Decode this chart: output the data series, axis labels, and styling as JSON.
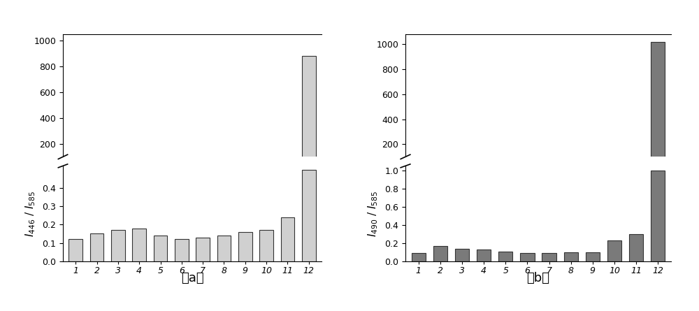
{
  "chart_a": {
    "categories": [
      "1",
      "2",
      "3",
      "4",
      "5",
      "6",
      "7",
      "8",
      "9",
      "10",
      "11",
      "12"
    ],
    "values_lower": [
      0.12,
      0.15,
      0.17,
      0.18,
      0.14,
      0.12,
      0.13,
      0.14,
      0.16,
      0.17,
      0.24,
      0.5
    ],
    "bar12_total": 880,
    "ylabel": "$I_{446}$ / $I_{585}$",
    "lower_ylim": [
      0.0,
      0.52
    ],
    "upper_ylim": [
      100,
      1050
    ],
    "lower_yticks": [
      0.0,
      0.1,
      0.2,
      0.3,
      0.4
    ],
    "upper_yticks": [
      200,
      400,
      600,
      800,
      1000
    ],
    "bar_color": "#d0d0d0",
    "bar_edge_color": "#333333",
    "label": "（a）"
  },
  "chart_b": {
    "categories": [
      "1",
      "2",
      "3",
      "4",
      "5",
      "6",
      "7",
      "8",
      "9",
      "10",
      "11",
      "12"
    ],
    "values_lower": [
      0.09,
      0.17,
      0.14,
      0.13,
      0.11,
      0.09,
      0.09,
      0.1,
      0.1,
      0.23,
      0.3,
      1.0
    ],
    "bar12_total": 1020,
    "ylabel": "$I_{490}$ / $I_{585}$",
    "lower_ylim": [
      0.0,
      1.05
    ],
    "upper_ylim": [
      100,
      1080
    ],
    "lower_yticks": [
      0.0,
      0.2,
      0.4,
      0.6,
      0.8,
      1.0
    ],
    "upper_yticks": [
      200,
      400,
      600,
      800,
      1000
    ],
    "bar_color": "#7a7a7a",
    "bar_edge_color": "#333333",
    "label": "（b）"
  },
  "figure_bg": "#ffffff",
  "font_size_ticks": 9,
  "font_size_label": 11,
  "font_size_caption": 13
}
